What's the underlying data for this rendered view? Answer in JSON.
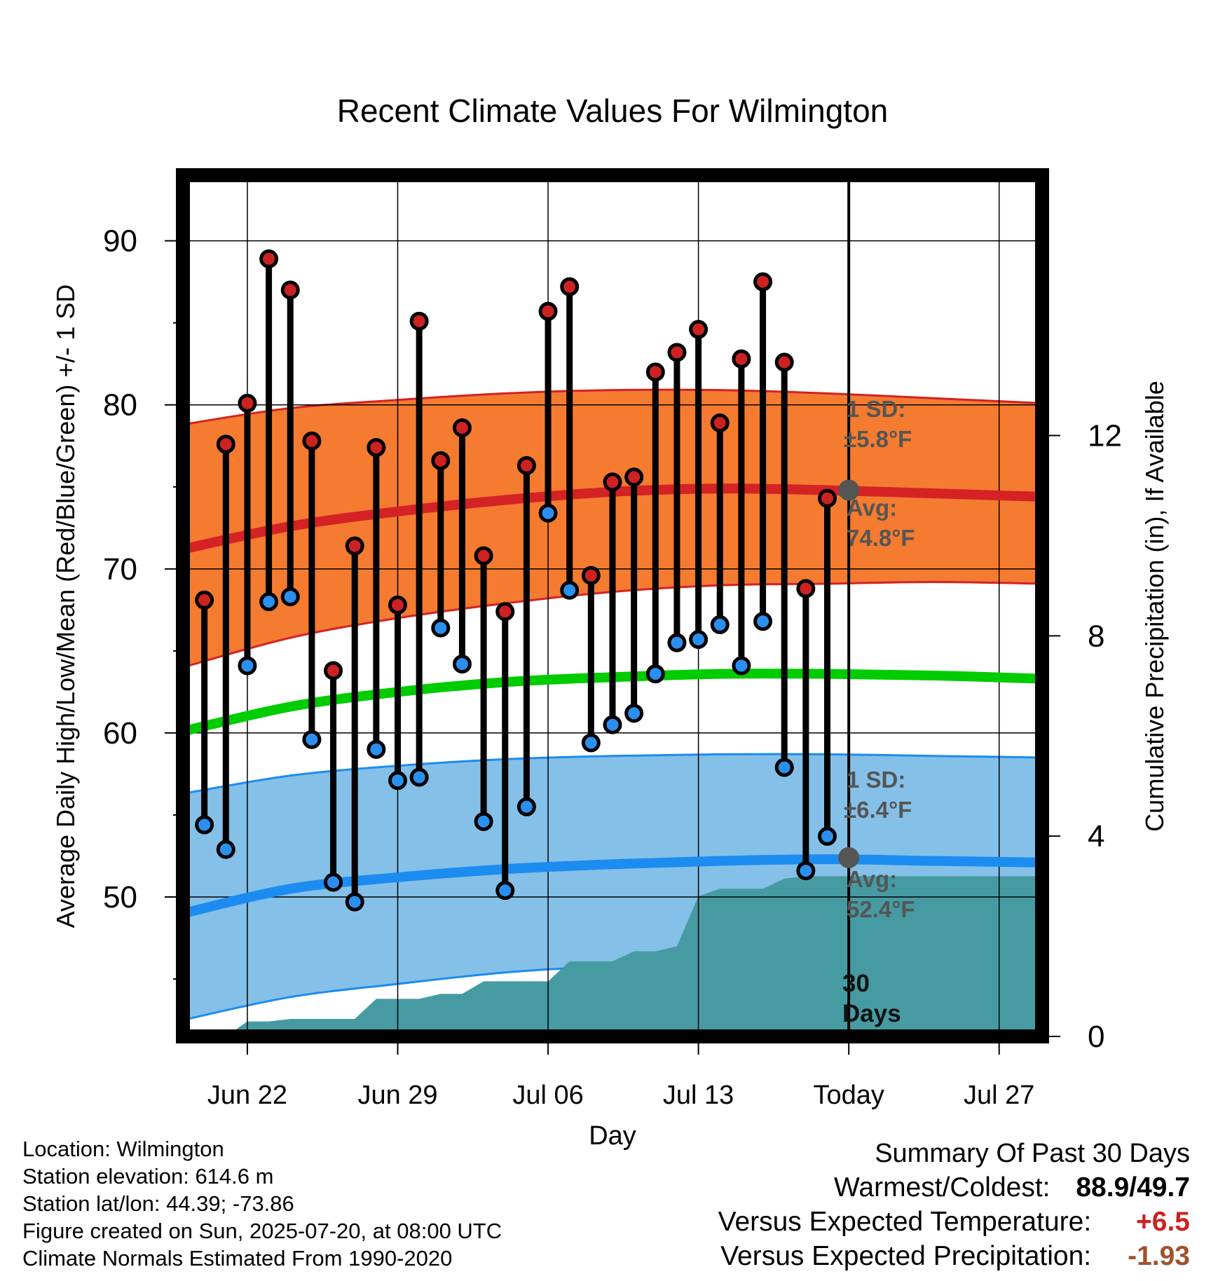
{
  "chart_data": {
    "type": "line",
    "title": "Recent Climate Values For Wilmington",
    "xlabel": "Day",
    "ylabel": "Average Daily High/Low/Mean (Red/Blue/Green) +/- 1 SD",
    "y2label": "Cumulative Precipitation (in), If Available",
    "ylim": [
      41.5,
      94
    ],
    "y2lim": [
      0,
      17.2
    ],
    "yticks": [
      "50",
      "60",
      "70",
      "80",
      "90"
    ],
    "y2ticks": [
      "0",
      "4",
      "8",
      "12"
    ],
    "x_start": "2025-06-19",
    "x_end": "2025-07-29",
    "xticks": [
      {
        "date": "2025-06-22",
        "label": "Jun 22"
      },
      {
        "date": "2025-06-29",
        "label": "Jun 29"
      },
      {
        "date": "2025-07-06",
        "label": "Jul 06"
      },
      {
        "date": "2025-07-13",
        "label": "Jul 13"
      },
      {
        "date": "2025-07-20",
        "label": "Today"
      },
      {
        "date": "2025-07-27",
        "label": "Jul 27"
      }
    ],
    "today": "2025-07-20",
    "today_label_line1": "30",
    "today_label_line2": "Days",
    "grid": true,
    "daily": {
      "dates": [
        "2025-06-20",
        "2025-06-21",
        "2025-06-22",
        "2025-06-23",
        "2025-06-24",
        "2025-06-25",
        "2025-06-26",
        "2025-06-27",
        "2025-06-28",
        "2025-06-29",
        "2025-06-30",
        "2025-07-01",
        "2025-07-02",
        "2025-07-03",
        "2025-07-04",
        "2025-07-05",
        "2025-07-06",
        "2025-07-07",
        "2025-07-08",
        "2025-07-09",
        "2025-07-10",
        "2025-07-11",
        "2025-07-12",
        "2025-07-13",
        "2025-07-14",
        "2025-07-15",
        "2025-07-16",
        "2025-07-17",
        "2025-07-18",
        "2025-07-19"
      ],
      "highs": [
        68.1,
        77.6,
        80.1,
        88.9,
        87.0,
        77.8,
        63.8,
        71.4,
        77.4,
        67.8,
        85.1,
        76.6,
        78.6,
        70.8,
        67.4,
        76.3,
        85.7,
        87.2,
        69.6,
        75.3,
        75.6,
        82.0,
        83.2,
        84.6,
        78.9,
        82.8,
        87.5,
        82.6,
        68.8,
        74.3
      ],
      "lows": [
        54.4,
        52.9,
        64.1,
        68.0,
        68.3,
        59.6,
        50.9,
        49.7,
        59.0,
        57.1,
        57.3,
        66.4,
        64.2,
        54.6,
        50.4,
        55.5,
        73.4,
        68.7,
        59.4,
        60.5,
        61.2,
        63.6,
        65.5,
        65.7,
        66.6,
        64.1,
        66.8,
        57.9,
        51.6,
        53.7
      ]
    },
    "normals": {
      "dates": [
        "2025-06-19",
        "2025-06-24",
        "2025-06-29",
        "2025-07-04",
        "2025-07-09",
        "2025-07-14",
        "2025-07-19",
        "2025-07-24",
        "2025-07-29"
      ],
      "high_mean": [
        71.2,
        72.6,
        73.5,
        74.2,
        74.7,
        74.9,
        74.8,
        74.6,
        74.4
      ],
      "high_upper": [
        78.8,
        79.8,
        80.3,
        80.7,
        80.9,
        80.9,
        80.7,
        80.4,
        80.1
      ],
      "high_lower": [
        64.0,
        65.8,
        67.0,
        67.9,
        68.6,
        69.0,
        69.1,
        69.2,
        69.1
      ],
      "mean": [
        60.1,
        61.6,
        62.5,
        63.1,
        63.4,
        63.6,
        63.6,
        63.5,
        63.3
      ],
      "low_mean": [
        49.0,
        50.5,
        51.2,
        51.7,
        52.0,
        52.2,
        52.3,
        52.2,
        52.1
      ],
      "low_upper": [
        56.3,
        57.4,
        58.0,
        58.4,
        58.6,
        58.7,
        58.7,
        58.6,
        58.5
      ],
      "low_lower": [
        42.5,
        43.9,
        44.7,
        45.4,
        45.8,
        46.1,
        46.1,
        46.1,
        46.1
      ]
    },
    "precip": {
      "dates": [
        "2025-06-19",
        "2025-06-21",
        "2025-06-22",
        "2025-06-23",
        "2025-06-24",
        "2025-06-25",
        "2025-06-26",
        "2025-06-27",
        "2025-06-28",
        "2025-06-29",
        "2025-06-30",
        "2025-07-01",
        "2025-07-02",
        "2025-07-03",
        "2025-07-04",
        "2025-07-05",
        "2025-07-06",
        "2025-07-07",
        "2025-07-08",
        "2025-07-09",
        "2025-07-10",
        "2025-07-11",
        "2025-07-12",
        "2025-07-13",
        "2025-07-14",
        "2025-07-15",
        "2025-07-16",
        "2025-07-17",
        "2025-07-18",
        "2025-07-19",
        "2025-07-29"
      ],
      "values": [
        0.0,
        0.0,
        0.3,
        0.3,
        0.35,
        0.35,
        0.35,
        0.35,
        0.75,
        0.75,
        0.75,
        0.85,
        0.85,
        1.1,
        1.1,
        1.1,
        1.1,
        1.5,
        1.5,
        1.5,
        1.7,
        1.7,
        1.8,
        2.8,
        2.95,
        2.95,
        2.95,
        3.15,
        3.2,
        3.2,
        3.2
      ]
    },
    "annotations": {
      "high_sd_line1": "1 SD:",
      "high_sd_line2": "±5.8°F",
      "high_avg_line1": "Avg:",
      "high_avg_line2": "74.8°F",
      "high_avg_value": 74.8,
      "low_sd_line1": "1 SD:",
      "low_sd_line2": "±6.4°F",
      "low_avg_line1": "Avg:",
      "low_avg_line2": "52.4°F",
      "low_avg_value": 52.4
    },
    "colors": {
      "high_band": "#f47b30",
      "high_line": "#d42225",
      "mean_line": "#00cc00",
      "low_band": "#85c0e8",
      "low_line": "#1c8cf0",
      "precip": "#469ba3",
      "high_dot": "#cc2222",
      "low_dot": "#2b8ff0",
      "annotation": "#555555"
    }
  },
  "info": {
    "location": "Location: Wilmington",
    "elevation": "Station elevation: 614.6 m",
    "latlon": "Station lat/lon: 44.39; -73.86",
    "created": "Figure created on Sun, 2025-07-20, at 08:00 UTC",
    "normals": "Climate Normals Estimated From 1990-2020"
  },
  "summary": {
    "title": "Summary Of Past 30 Days",
    "warmest_label": "Warmest/Coldest:",
    "warmest_value": "88.9",
    "slash": "/",
    "coldest_value": "49.7",
    "temp_label": "Versus Expected Temperature:",
    "temp_value": "+6.5",
    "temp_color": "#cc2222",
    "precip_label": "Versus Expected Precipitation:",
    "precip_value": "-1.93",
    "precip_color": "#a0522d"
  }
}
